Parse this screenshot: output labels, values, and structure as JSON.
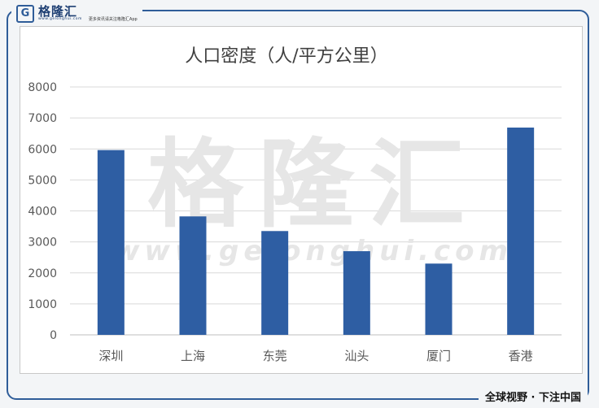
{
  "header": {
    "logo_letter": "G",
    "brand_name": "格隆汇",
    "brand_url": "www.gelonghui.com",
    "slogan": "更多资讯请关注格隆汇App"
  },
  "watermark": {
    "brand_text": "格隆汇",
    "url_text": "www.gelonghui.com"
  },
  "footer": {
    "banner": "全球视野 · 下注中国"
  },
  "chart_data": {
    "type": "bar",
    "title": "人口密度（人/平方公里）",
    "xlabel": "",
    "ylabel": "",
    "categories": [
      "深圳",
      "上海",
      "东莞",
      "汕头",
      "厦门",
      "香港"
    ],
    "values": [
      5963,
      3823,
      3350,
      2700,
      2300,
      6690
    ],
    "ylim": [
      0,
      8000
    ],
    "yticks": [
      "0",
      "1000",
      "2000",
      "3000",
      "4000",
      "5000",
      "6000",
      "7000",
      "8000"
    ],
    "grid": true,
    "bar_color": "#2e5ea3"
  }
}
